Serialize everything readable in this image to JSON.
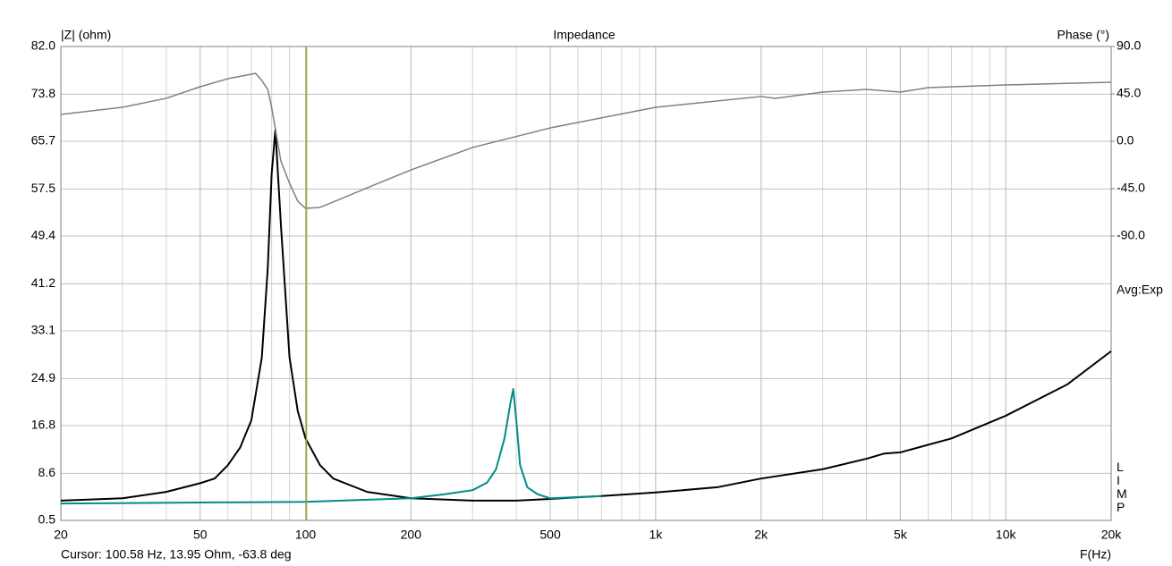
{
  "chart_data": {
    "type": "line",
    "title": "Impedance",
    "ylabel": "|Z| (ohm)",
    "y2label": "Phase (°)",
    "xlabel": "F(Hz)",
    "annotations": {
      "average": "Avg:Exp",
      "side": "LIMP"
    },
    "cursor": {
      "x": 100.58,
      "label": "Cursor: 100.58 Hz, 13.95 Ohm, -63.8 deg",
      "color": "#a3a32e"
    },
    "xscale": "log",
    "grid": true,
    "xlim": [
      20,
      20000
    ],
    "xticks": [
      20,
      50,
      100,
      200,
      500,
      {
        "value": 1000,
        "label": "1k"
      },
      {
        "value": 2000,
        "label": "2k"
      },
      {
        "value": 5000,
        "label": "5k"
      },
      {
        "value": 10000,
        "label": "10k"
      },
      {
        "value": 20000,
        "label": "20k"
      }
    ],
    "ylim": [
      0.5,
      82
    ],
    "yticks": [
      0.5,
      8.6,
      16.8,
      24.9,
      33.1,
      41.2,
      49.4,
      57.5,
      65.7,
      73.8,
      {
        "value": 82,
        "label": "82.0"
      }
    ],
    "y2lim": [
      -360,
      90
    ],
    "y2ticks": [
      {
        "value": 90,
        "label": "90.0"
      },
      {
        "value": 45,
        "label": "45.0"
      },
      {
        "value": 0,
        "label": "0.0"
      },
      {
        "value": -45,
        "label": "-45.0"
      },
      {
        "value": -90,
        "label": "-90.0"
      }
    ],
    "series": [
      {
        "color": "#000000",
        "x": [
          20,
          30,
          40,
          50,
          55,
          60,
          65,
          70,
          75,
          78,
          80,
          82,
          85,
          90,
          95,
          100,
          110,
          120,
          150,
          200,
          300,
          400,
          500,
          700,
          1000,
          1500,
          2000,
          3000,
          4000,
          4500,
          5000,
          7000,
          10000,
          15000,
          20000
        ],
        "values": [
          3.9,
          4.3,
          5.4,
          6.9,
          7.7,
          10,
          13,
          17.7,
          28.5,
          43.9,
          60,
          67.7,
          51.5,
          28.5,
          19.3,
          14.6,
          10,
          7.7,
          5.4,
          4.3,
          3.9,
          3.9,
          4.2,
          4.7,
          5.3,
          6.2,
          7.7,
          9.3,
          11.1,
          12,
          12.2,
          14.6,
          18.5,
          23.9,
          29.6
        ]
      },
      {
        "color": "#008b8b",
        "x": [
          20,
          100,
          200,
          250,
          300,
          330,
          350,
          370,
          385,
          392,
          400,
          410,
          430,
          460,
          500,
          700
        ],
        "values": [
          3.4,
          3.7,
          4.3,
          5,
          5.7,
          7,
          9.3,
          14.6,
          20.8,
          23.1,
          17.7,
          10,
          6.2,
          5,
          4.3,
          4.7
        ]
      },
      {
        "color": "#808080",
        "axis": "y2",
        "x": [
          20,
          30,
          40,
          50,
          60,
          70,
          72,
          75,
          78,
          80,
          85,
          90,
          95,
          100,
          110,
          150,
          200,
          300,
          500,
          1000,
          2000,
          2200,
          3000,
          4000,
          5000,
          6000,
          10000,
          20000
        ],
        "values": [
          25.5,
          32.3,
          40.8,
          51.8,
          59.4,
          63.7,
          64.5,
          57.7,
          49.2,
          32.3,
          -18.7,
          -39.9,
          -56.9,
          -63.7,
          -62.8,
          -44.2,
          -27.2,
          -5.9,
          12.7,
          32.3,
          42.5,
          40.8,
          46.7,
          49.2,
          46.7,
          50.9,
          53.5,
          56
        ]
      }
    ]
  }
}
